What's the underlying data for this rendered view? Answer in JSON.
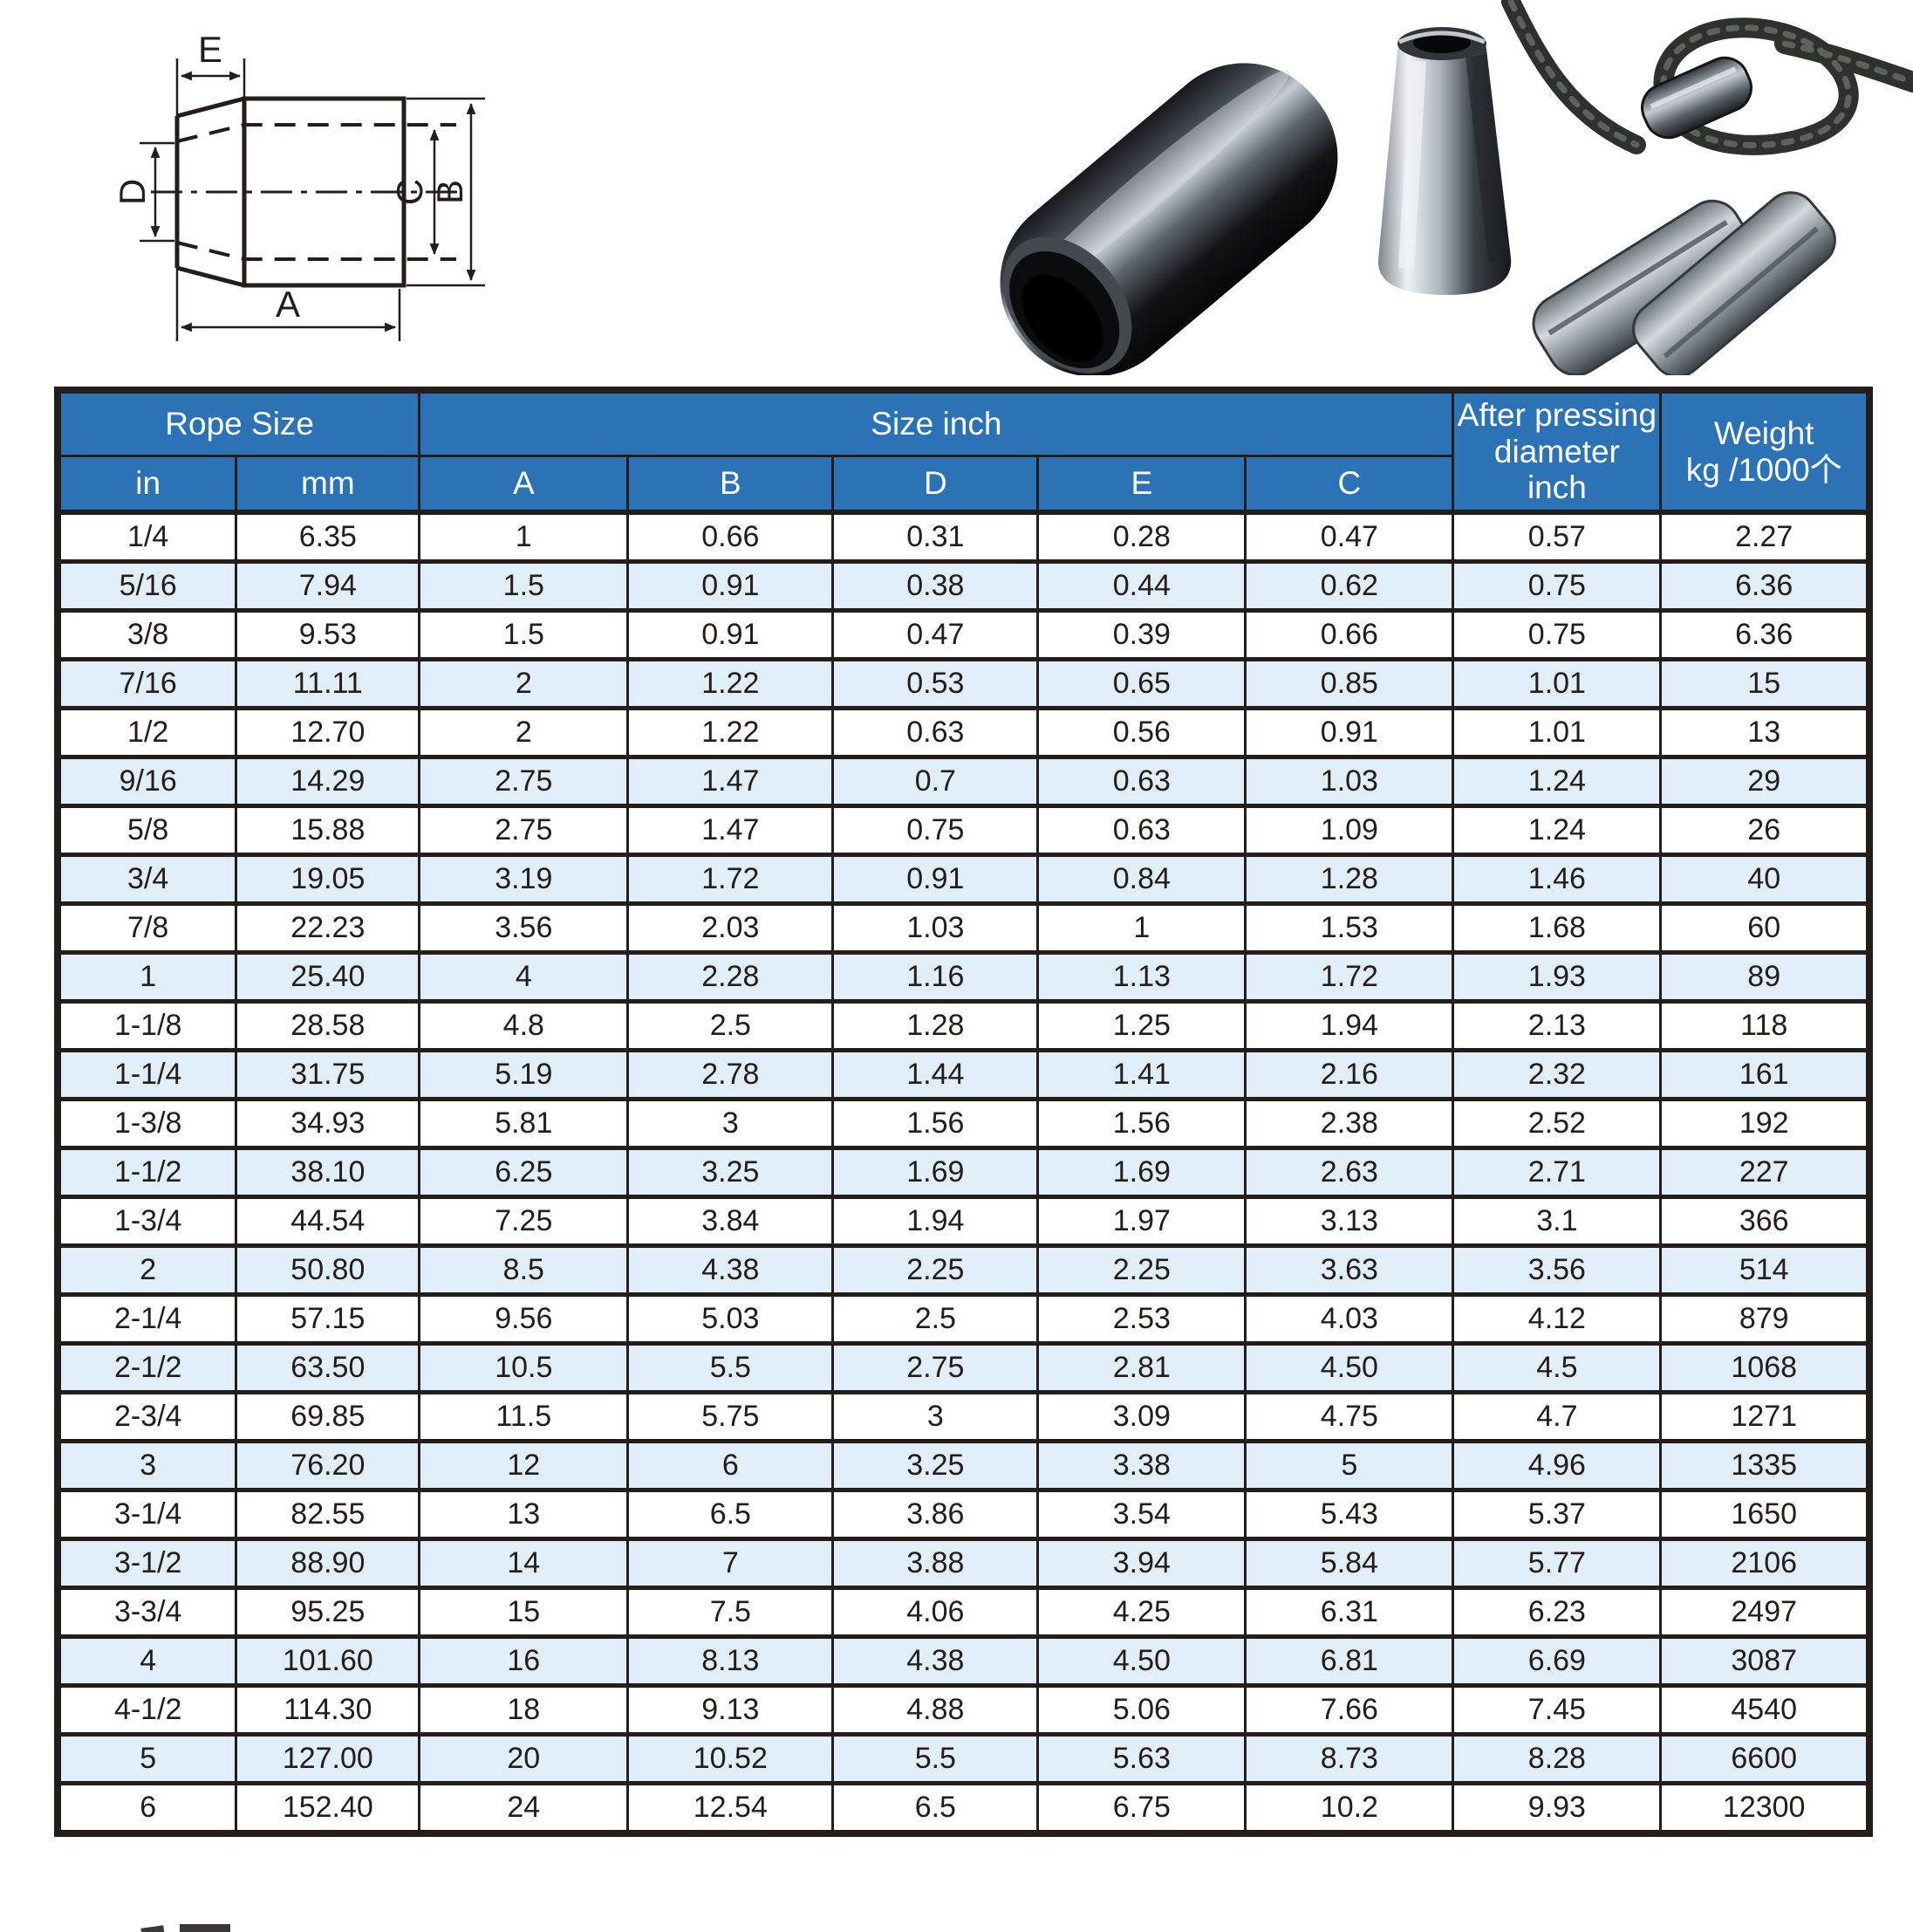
{
  "diagram": {
    "labels": {
      "a": "A",
      "b": "B",
      "c": "C",
      "d": "D",
      "e": "E"
    }
  },
  "table": {
    "header": {
      "rope_size": "Rope Size",
      "size_inch": "Size  inch",
      "after_pressing_lines": [
        "After pressing",
        "diameter",
        "inch"
      ],
      "weight_lines": [
        "Weight",
        "kg /1000个"
      ],
      "sub": [
        "in",
        "mm",
        "A",
        "B",
        "D",
        "E",
        "C"
      ]
    },
    "rows": [
      [
        "1/4",
        "6.35",
        "1",
        "0.66",
        "0.31",
        "0.28",
        "0.47",
        "0.57",
        "2.27"
      ],
      [
        "5/16",
        "7.94",
        "1.5",
        "0.91",
        "0.38",
        "0.44",
        "0.62",
        "0.75",
        "6.36"
      ],
      [
        "3/8",
        "9.53",
        "1.5",
        "0.91",
        "0.47",
        "0.39",
        "0.66",
        "0.75",
        "6.36"
      ],
      [
        "7/16",
        "11.11",
        "2",
        "1.22",
        "0.53",
        "0.65",
        "0.85",
        "1.01",
        "15"
      ],
      [
        "1/2",
        "12.70",
        "2",
        "1.22",
        "0.63",
        "0.56",
        "0.91",
        "1.01",
        "13"
      ],
      [
        "9/16",
        "14.29",
        "2.75",
        "1.47",
        "0.7",
        "0.63",
        "1.03",
        "1.24",
        "29"
      ],
      [
        "5/8",
        "15.88",
        "2.75",
        "1.47",
        "0.75",
        "0.63",
        "1.09",
        "1.24",
        "26"
      ],
      [
        "3/4",
        "19.05",
        "3.19",
        "1.72",
        "0.91",
        "0.84",
        "1.28",
        "1.46",
        "40"
      ],
      [
        "7/8",
        "22.23",
        "3.56",
        "2.03",
        "1.03",
        "1",
        "1.53",
        "1.68",
        "60"
      ],
      [
        "1",
        "25.40",
        "4",
        "2.28",
        "1.16",
        "1.13",
        "1.72",
        "1.93",
        "89"
      ],
      [
        "1-1/8",
        "28.58",
        "4.8",
        "2.5",
        "1.28",
        "1.25",
        "1.94",
        "2.13",
        "118"
      ],
      [
        "1-1/4",
        "31.75",
        "5.19",
        "2.78",
        "1.44",
        "1.41",
        "2.16",
        "2.32",
        "161"
      ],
      [
        "1-3/8",
        "34.93",
        "5.81",
        "3",
        "1.56",
        "1.56",
        "2.38",
        "2.52",
        "192"
      ],
      [
        "1-1/2",
        "38.10",
        "6.25",
        "3.25",
        "1.69",
        "1.69",
        "2.63",
        "2.71",
        "227"
      ],
      [
        "1-3/4",
        "44.54",
        "7.25",
        "3.84",
        "1.94",
        "1.97",
        "3.13",
        "3.1",
        "366"
      ],
      [
        "2",
        "50.80",
        "8.5",
        "4.38",
        "2.25",
        "2.25",
        "3.63",
        "3.56",
        "514"
      ],
      [
        "2-1/4",
        "57.15",
        "9.56",
        "5.03",
        "2.5",
        "2.53",
        "4.03",
        "4.12",
        "879"
      ],
      [
        "2-1/2",
        "63.50",
        "10.5",
        "5.5",
        "2.75",
        "2.81",
        "4.50",
        "4.5",
        "1068"
      ],
      [
        "2-3/4",
        "69.85",
        "11.5",
        "5.75",
        "3",
        "3.09",
        "4.75",
        "4.7",
        "1271"
      ],
      [
        "3",
        "76.20",
        "12",
        "6",
        "3.25",
        "3.38",
        "5",
        "4.96",
        "1335"
      ],
      [
        "3-1/4",
        "82.55",
        "13",
        "6.5",
        "3.86",
        "3.54",
        "5.43",
        "5.37",
        "1650"
      ],
      [
        "3-1/2",
        "88.90",
        "14",
        "7",
        "3.88",
        "3.94",
        "5.84",
        "5.77",
        "2106"
      ],
      [
        "3-3/4",
        "95.25",
        "15",
        "7.5",
        "4.06",
        "4.25",
        "6.31",
        "6.23",
        "2497"
      ],
      [
        "4",
        "101.60",
        "16",
        "8.13",
        "4.38",
        "4.50",
        "6.81",
        "6.69",
        "3087"
      ],
      [
        "4-1/2",
        "114.30",
        "18",
        "9.13",
        "4.88",
        "5.06",
        "7.66",
        "7.45",
        "4540"
      ],
      [
        "5",
        "127.00",
        "20",
        "10.52",
        "5.5",
        "5.63",
        "8.73",
        "8.28",
        "6600"
      ],
      [
        "6",
        "152.40",
        "24",
        "12.54",
        "6.5",
        "6.75",
        "10.2",
        "9.93",
        "12300"
      ]
    ]
  },
  "colors": {
    "header_blue": "#2b72b7",
    "row_alt_blue": "#dfeef9",
    "border_dark": "#241d19"
  }
}
